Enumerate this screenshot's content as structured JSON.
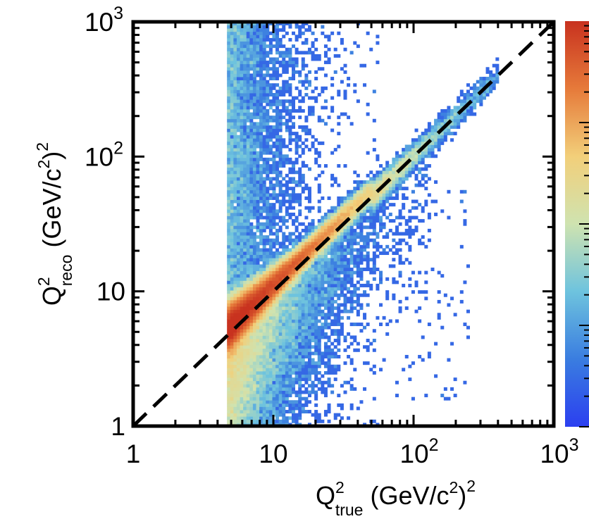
{
  "chart_data": {
    "type": "heatmap",
    "title": "",
    "xlabel": {
      "base": "Q",
      "sup": "2",
      "sub": "true",
      "unit_open": " (GeV/c",
      "unit_sup": "2",
      "unit_close": ")",
      "unit_sup2": "2"
    },
    "ylabel": {
      "base": "Q",
      "sup": "2",
      "sub": "reco",
      "unit_open": " (GeV/c",
      "unit_sup": "2",
      "unit_close": ")",
      "unit_sup2": "2"
    },
    "x_scale": "log",
    "y_scale": "log",
    "xlim": [
      1,
      1000
    ],
    "ylim": [
      1,
      1000
    ],
    "x_ticks": [
      {
        "value": 1,
        "base": "1",
        "exp": ""
      },
      {
        "value": 10,
        "base": "10",
        "exp": ""
      },
      {
        "value": 100,
        "base": "10",
        "exp": "2"
      },
      {
        "value": 1000,
        "base": "10",
        "exp": "3"
      }
    ],
    "y_ticks": [
      {
        "value": 1,
        "base": "1",
        "exp": ""
      },
      {
        "value": 10,
        "base": "10",
        "exp": ""
      },
      {
        "value": 100,
        "base": "10",
        "exp": "2"
      },
      {
        "value": 1000,
        "base": "10",
        "exp": "3"
      }
    ],
    "reference_line": {
      "style": "dashed",
      "color": "#000000",
      "description": "y = x",
      "points": [
        [
          1,
          1
        ],
        [
          1000,
          1000
        ]
      ]
    },
    "density": {
      "x_min_cut": 4.7,
      "ridge": [
        [
          4.7,
          5.4
        ],
        [
          6,
          6.7
        ],
        [
          8,
          8.9
        ],
        [
          10,
          11
        ],
        [
          15,
          16
        ],
        [
          20,
          21
        ],
        [
          30,
          31
        ],
        [
          50,
          51
        ],
        [
          100,
          100
        ],
        [
          200,
          195
        ]
      ],
      "peak_region": {
        "x_range": [
          4.7,
          12
        ],
        "y_over_x": 1.12
      },
      "outlier_tail": {
        "x_range": [
          4.7,
          60
        ],
        "y_range": [
          1,
          1000
        ]
      }
    },
    "colorbar": {
      "colors": [
        "#2b3ff0",
        "#3a7de0",
        "#6ec3de",
        "#cfe3b0",
        "#f2cf7a",
        "#e67a3a",
        "#c8321f"
      ],
      "scale": "log",
      "tick_labels": []
    }
  }
}
